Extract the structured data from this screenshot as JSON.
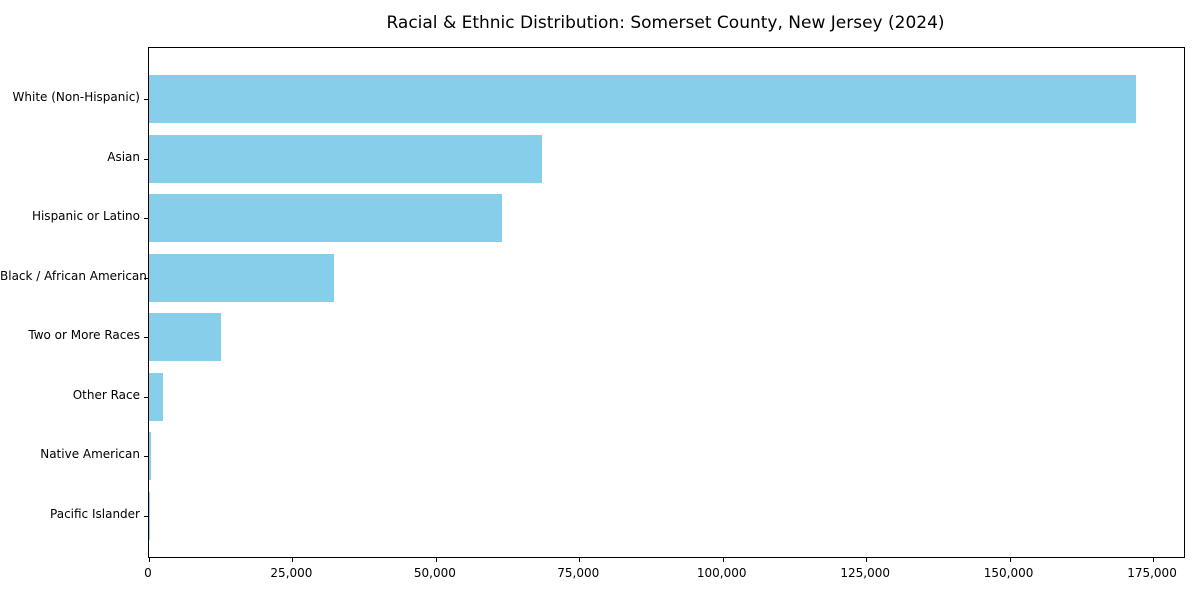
{
  "chart_data": {
    "type": "bar",
    "orientation": "horizontal",
    "title": "Racial & Ethnic Distribution: Somerset County, New Jersey (2024)",
    "categories": [
      "White (Non-Hispanic)",
      "Asian",
      "Hispanic or Latino",
      "Black / African American",
      "Two or More Races",
      "Other Race",
      "Native American",
      "Pacific Islander"
    ],
    "values": [
      172000,
      68500,
      61500,
      32300,
      12600,
      2400,
      400,
      120
    ],
    "bar_color": "#87CEEB",
    "xlabel": "",
    "ylabel": "",
    "xlim": [
      0,
      180400
    ],
    "x_ticks": [
      0,
      25000,
      50000,
      75000,
      100000,
      125000,
      150000,
      175000
    ],
    "x_tick_labels": [
      "0",
      "25,000",
      "50,000",
      "75,000",
      "100,000",
      "125,000",
      "150,000",
      "175,000"
    ],
    "grid": false,
    "legend": null,
    "frame": true,
    "background_color": "#ffffff",
    "text_color": "#000000"
  }
}
